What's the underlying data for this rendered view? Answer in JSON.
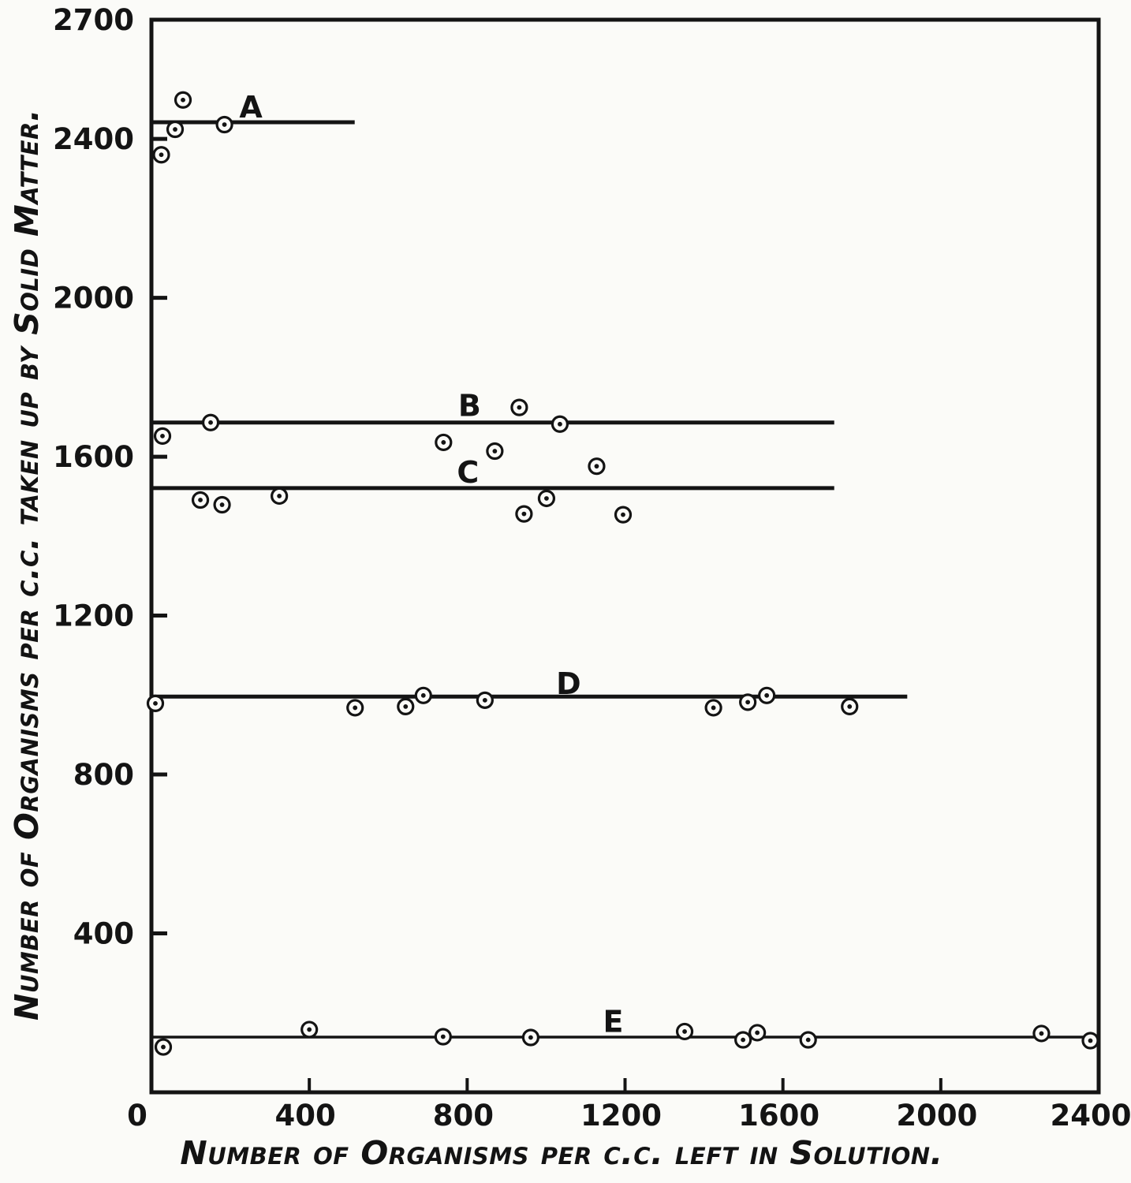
{
  "figure": {
    "background": "#fbfbf8",
    "ink": "#141414"
  },
  "chart_data": {
    "type": "scatter",
    "title": "",
    "xlabel": "Number of Organisms per c.c. left in Solution.",
    "ylabel": "Number of Organisms per c.c. taken up by Solid Matter.",
    "xlim": [
      0,
      2400
    ],
    "ylim": [
      0,
      2700
    ],
    "x_ticks": [
      0,
      400,
      800,
      1200,
      1600,
      2000,
      2400
    ],
    "y_ticks": [
      2700,
      2400,
      2000,
      1600,
      1200,
      800,
      400
    ],
    "grid": false,
    "legend_position": "none",
    "annotation_note": "five horizontal fitted lines labeled A to E with circled-dot data points scattered about each line",
    "series": [
      {
        "name": "A",
        "fit_line_y": 2442,
        "fit_line_x_range": [
          0,
          515
        ],
        "label_pos": {
          "x": 252,
          "y": 2478
        },
        "points": [
          [
            25,
            2360
          ],
          [
            60,
            2424
          ],
          [
            80,
            2498
          ],
          [
            185,
            2436
          ]
        ]
      },
      {
        "name": "B",
        "fit_line_y": 1686,
        "fit_line_x_range": [
          0,
          1730
        ],
        "label_pos": {
          "x": 806,
          "y": 1726
        },
        "points": [
          [
            28,
            1652
          ],
          [
            150,
            1686
          ],
          [
            740,
            1636
          ],
          [
            870,
            1614
          ],
          [
            932,
            1724
          ],
          [
            1035,
            1682
          ]
        ]
      },
      {
        "name": "C",
        "fit_line_y": 1521,
        "fit_line_x_range": [
          0,
          1730
        ],
        "label_pos": {
          "x": 802,
          "y": 1558
        },
        "points": [
          [
            124,
            1491
          ],
          [
            179,
            1479
          ],
          [
            324,
            1501
          ],
          [
            944,
            1456
          ],
          [
            1001,
            1495
          ],
          [
            1128,
            1576
          ],
          [
            1195,
            1454
          ]
        ]
      },
      {
        "name": "D",
        "fit_line_y": 996,
        "fit_line_x_range": [
          0,
          1915
        ],
        "label_pos": {
          "x": 1057,
          "y": 1026
        },
        "points": [
          [
            10,
            979
          ],
          [
            516,
            968
          ],
          [
            644,
            971
          ],
          [
            689,
            999
          ],
          [
            845,
            987
          ],
          [
            1424,
            968
          ],
          [
            1511,
            982
          ],
          [
            1559,
            999
          ],
          [
            1769,
            971
          ]
        ]
      },
      {
        "name": "E",
        "fit_line_y": 139,
        "fit_line_x_range": [
          0,
          2400
        ],
        "label_pos": {
          "x": 1170,
          "y": 176
        },
        "points": [
          [
            30,
            114
          ],
          [
            400,
            158
          ],
          [
            739,
            140
          ],
          [
            961,
            138
          ],
          [
            1351,
            153
          ],
          [
            1499,
            132
          ],
          [
            1535,
            150
          ],
          [
            1664,
            132
          ],
          [
            2255,
            148
          ],
          [
            2379,
            130
          ]
        ]
      }
    ]
  }
}
